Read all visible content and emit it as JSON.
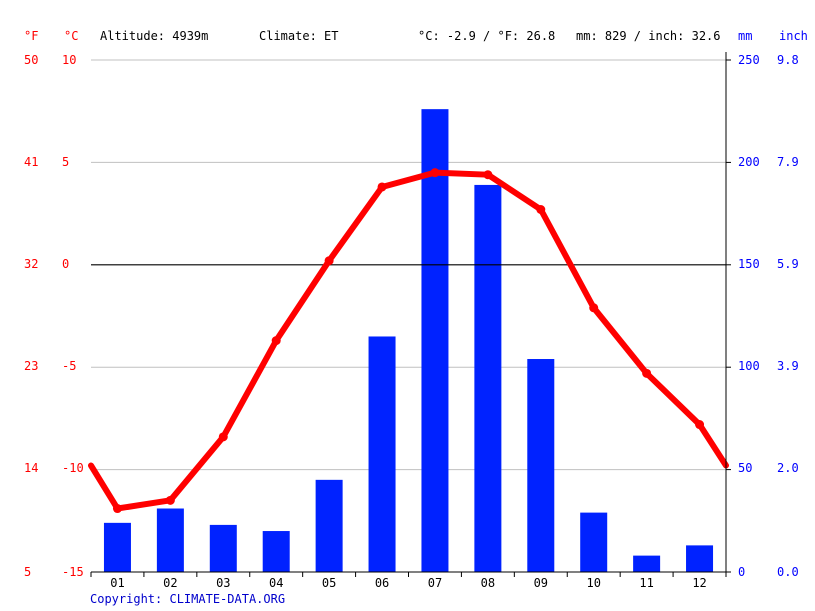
{
  "header": {
    "unit_f": "°F",
    "unit_c": "°C",
    "altitude": "Altitude: 4939m",
    "climate": "Climate: ET",
    "temp_avg": "°C: -2.9 / °F: 26.8",
    "precip_total": "mm: 829 / inch: 32.6",
    "unit_mm": "mm",
    "unit_inch": "inch"
  },
  "footer": {
    "copyright": "Copyright: CLIMATE-DATA.ORG"
  },
  "colors": {
    "temperature": "#ff0000",
    "precipitation": "#0022ff",
    "zero_line": "#000000",
    "grid": "#c0c0c0"
  },
  "chart_data": {
    "type": "bar+line",
    "categories": [
      "01",
      "02",
      "03",
      "04",
      "05",
      "06",
      "07",
      "08",
      "09",
      "10",
      "11",
      "12"
    ],
    "series": [
      {
        "kind": "bar",
        "axis": "right",
        "values": [
          24,
          31,
          23,
          20,
          45,
          115,
          226,
          189,
          104,
          29,
          8,
          13
        ]
      },
      {
        "kind": "line",
        "axis": "left",
        "values": [
          -11.9,
          -11.5,
          -8.4,
          -3.7,
          0.2,
          3.8,
          4.5,
          4.4,
          2.7,
          -2.1,
          -5.3,
          -7.8
        ]
      }
    ],
    "line_edges": {
      "start": -9.8,
      "end": -9.8
    },
    "left_axis": {
      "ylim": [
        -15,
        10
      ],
      "ticks_c": [
        "10",
        "5",
        "0",
        "-5",
        "-10",
        "-15"
      ],
      "ticks_f": [
        "50",
        "41",
        "32",
        "23",
        "14",
        "5"
      ]
    },
    "right_axis": {
      "ylim": [
        0,
        250
      ],
      "ticks_mm": [
        "250",
        "200",
        "150",
        "100",
        "50",
        "0"
      ],
      "ticks_inch": [
        "9.8",
        "7.9",
        "5.9",
        "3.9",
        "2.0",
        "0.0"
      ]
    },
    "grid": true
  }
}
